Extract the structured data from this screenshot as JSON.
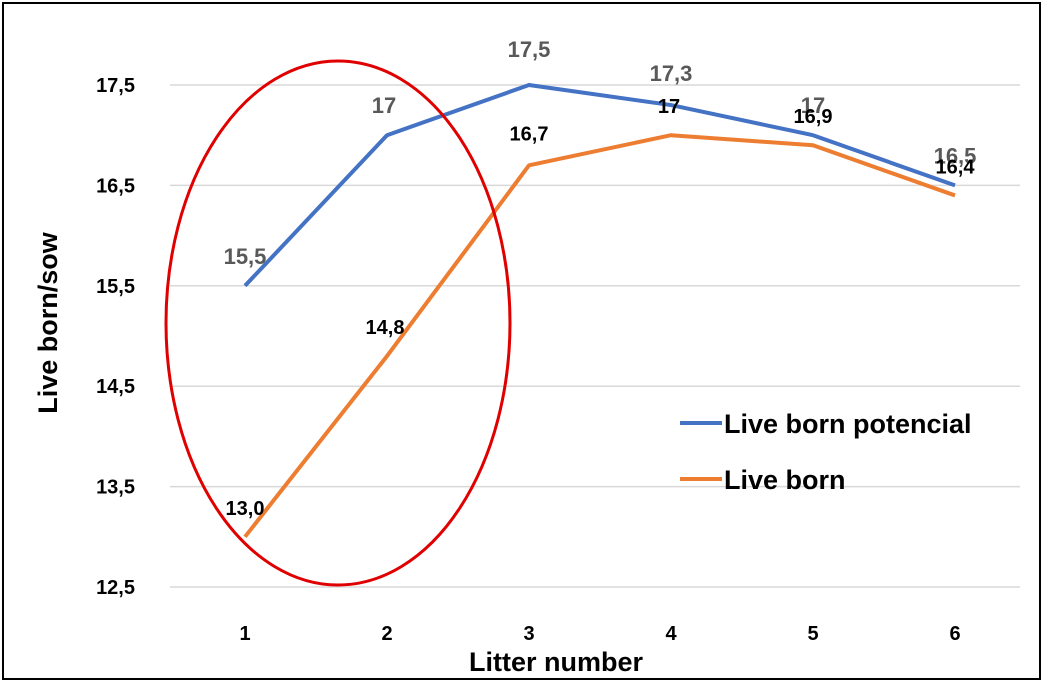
{
  "chart_data": {
    "type": "line",
    "xlabel": "Litter number",
    "ylabel": "Live born/sow",
    "categories": [
      "1",
      "2",
      "3",
      "4",
      "5",
      "6"
    ],
    "ylim": [
      12.5,
      17.5
    ],
    "yticks": [
      "12,5",
      "13,5",
      "14,5",
      "15,5",
      "16,5",
      "17,5"
    ],
    "grid": "horizontal",
    "legend_position": "right",
    "series": [
      {
        "name": "Live born potencial",
        "color": "#4472C4",
        "values": [
          15.5,
          17,
          17.5,
          17.3,
          17,
          16.5
        ],
        "labels": [
          "15,5",
          "17",
          "17,5",
          "17,3",
          "17",
          "16,5"
        ]
      },
      {
        "name": "Live born",
        "color": "#ED7D31",
        "values": [
          13.0,
          14.8,
          16.7,
          17,
          16.9,
          16.4
        ],
        "labels": [
          "13,0",
          "14,8",
          "16,7",
          "17",
          "16,9",
          "16,4"
        ]
      }
    ],
    "annotation": {
      "shape": "ellipse",
      "color": "#E00000"
    }
  }
}
